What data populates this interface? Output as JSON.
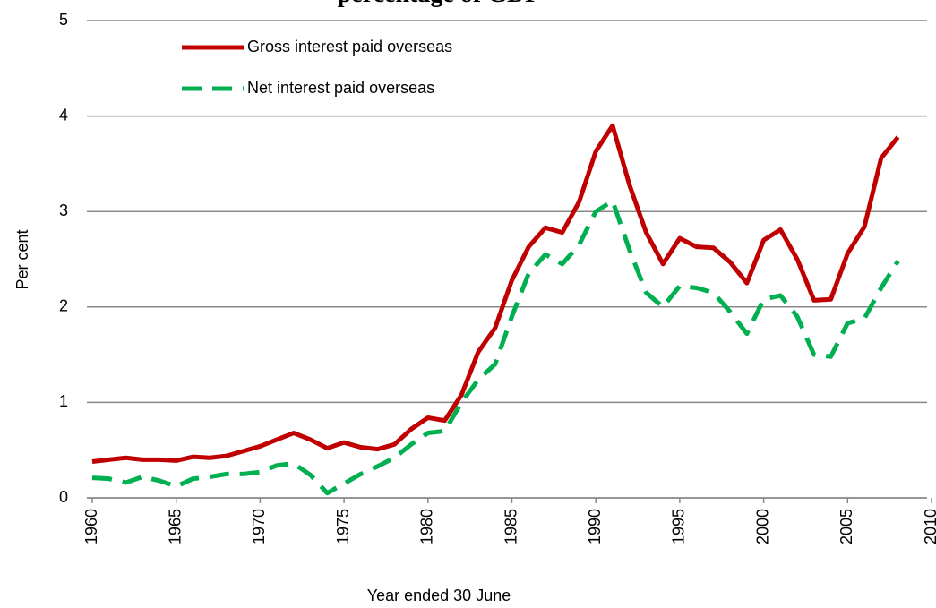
{
  "chart_data": {
    "type": "line",
    "title": "percentage of GDP",
    "xlabel": "Year ended 30 June",
    "ylabel": "Per cent",
    "x": [
      1960,
      1961,
      1962,
      1963,
      1964,
      1965,
      1966,
      1967,
      1968,
      1969,
      1970,
      1971,
      1972,
      1973,
      1974,
      1975,
      1976,
      1977,
      1978,
      1979,
      1980,
      1981,
      1982,
      1983,
      1984,
      1985,
      1986,
      1987,
      1988,
      1989,
      1990,
      1991,
      1992,
      1993,
      1994,
      1995,
      1996,
      1997,
      1998,
      1999,
      2000,
      2001,
      2002,
      2003,
      2004,
      2005,
      2006,
      2007,
      2008
    ],
    "series": [
      {
        "name": "Gross interest paid overseas",
        "color": "#c00000",
        "line_style": "solid",
        "values": [
          0.38,
          0.4,
          0.42,
          0.4,
          0.4,
          0.39,
          0.43,
          0.42,
          0.44,
          0.49,
          0.54,
          0.61,
          0.68,
          0.61,
          0.52,
          0.58,
          0.53,
          0.51,
          0.56,
          0.72,
          0.84,
          0.81,
          1.08,
          1.53,
          1.78,
          2.28,
          2.63,
          2.83,
          2.78,
          3.1,
          3.63,
          3.9,
          3.28,
          2.78,
          2.45,
          2.72,
          2.63,
          2.62,
          2.47,
          2.25,
          2.7,
          2.81,
          2.5,
          2.07,
          2.08,
          2.56,
          2.84,
          3.56,
          3.78
        ]
      },
      {
        "name": "Net interest paid overseas",
        "color": "#00b050",
        "line_style": "dashed",
        "values": [
          0.21,
          0.2,
          0.16,
          0.22,
          0.18,
          0.12,
          0.2,
          0.22,
          0.25,
          0.25,
          0.27,
          0.34,
          0.36,
          0.24,
          0.05,
          0.15,
          0.25,
          0.33,
          0.42,
          0.56,
          0.68,
          0.7,
          1.0,
          1.24,
          1.4,
          1.9,
          2.35,
          2.55,
          2.45,
          2.65,
          3.0,
          3.11,
          2.6,
          2.15,
          2.0,
          2.22,
          2.2,
          2.15,
          1.95,
          1.72,
          2.08,
          2.12,
          1.9,
          1.5,
          1.48,
          1.83,
          1.88,
          2.2,
          2.48
        ]
      }
    ],
    "xlim": [
      1960,
      2010
    ],
    "xticks": [
      1960,
      1965,
      1970,
      1975,
      1980,
      1985,
      1990,
      1995,
      2000,
      2005,
      2010
    ],
    "ylim": [
      0,
      5
    ],
    "yticks": [
      0,
      1,
      2,
      3,
      4,
      5
    ],
    "grid": true,
    "legend": "upper left"
  }
}
